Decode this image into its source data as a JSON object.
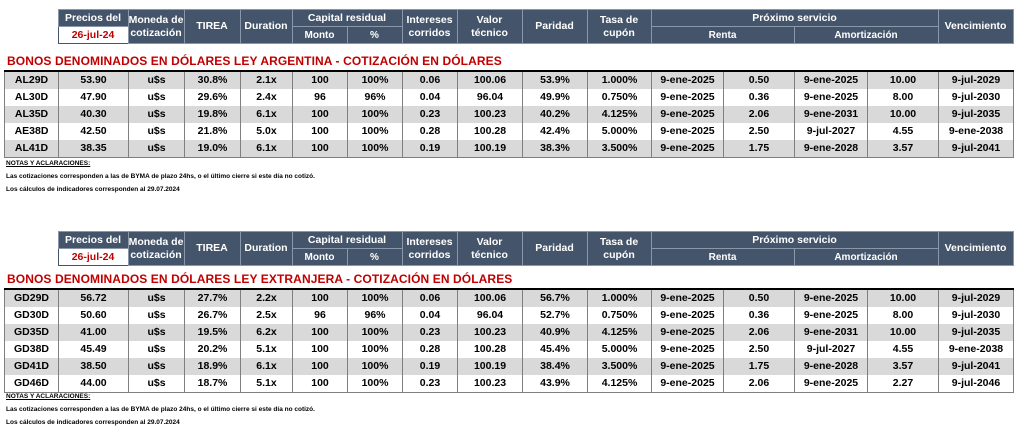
{
  "header": {
    "precios_del": "Precios del",
    "date": "26-jul-24",
    "moneda": "Moneda de cotización",
    "tirea": "TIREA",
    "duration": "Duration",
    "capital_residual": "Capital residual",
    "monto": "Monto",
    "pct": "%",
    "intereses": "Intereses corridos",
    "valor": "Valor técnico",
    "paridad": "Paridad",
    "tasa": "Tasa de cupón",
    "proximo": "Próximo servicio",
    "renta": "Renta",
    "amortizacion": "Amortización",
    "vencimiento": "Vencimiento"
  },
  "section1": {
    "title": "BONOS DENOMINADOS EN DÓLARES LEY ARGENTINA   -   COTIZACIÓN EN DÓLARES",
    "rows": [
      [
        "AL29D",
        "53.90",
        "u$s",
        "30.8%",
        "2.1x",
        "100",
        "100%",
        "0.06",
        "100.06",
        "53.9%",
        "1.000%",
        "9-ene-2025",
        "0.50",
        "9-ene-2025",
        "10.00",
        "9-jul-2029"
      ],
      [
        "AL30D",
        "47.90",
        "u$s",
        "29.6%",
        "2.4x",
        "96",
        "96%",
        "0.04",
        "96.04",
        "49.9%",
        "0.750%",
        "9-ene-2025",
        "0.36",
        "9-ene-2025",
        "8.00",
        "9-jul-2030"
      ],
      [
        "AL35D",
        "40.30",
        "u$s",
        "19.8%",
        "6.1x",
        "100",
        "100%",
        "0.23",
        "100.23",
        "40.2%",
        "4.125%",
        "9-ene-2025",
        "2.06",
        "9-ene-2031",
        "10.00",
        "9-jul-2035"
      ],
      [
        "AE38D",
        "42.50",
        "u$s",
        "21.8%",
        "5.0x",
        "100",
        "100%",
        "0.28",
        "100.28",
        "42.4%",
        "5.000%",
        "9-ene-2025",
        "2.50",
        "9-jul-2027",
        "4.55",
        "9-ene-2038"
      ],
      [
        "AL41D",
        "38.35",
        "u$s",
        "19.0%",
        "6.1x",
        "100",
        "100%",
        "0.19",
        "100.19",
        "38.3%",
        "3.500%",
        "9-ene-2025",
        "1.75",
        "9-ene-2028",
        "3.57",
        "9-jul-2041"
      ]
    ],
    "notes_title": "NOTAS Y ACLARACIONES:",
    "note1": "Las cotizaciones corresponden a las de BYMA de plazo 24hs, o el último cierre si este día no cotizó.",
    "note2": "Los cálculos de indicadores corresponden al 29.07.2024"
  },
  "section2": {
    "title": "BONOS DENOMINADOS EN DÓLARES LEY EXTRANJERA   -   COTIZACIÓN EN DÓLARES",
    "rows": [
      [
        "GD29D",
        "56.72",
        "u$s",
        "27.7%",
        "2.2x",
        "100",
        "100%",
        "0.06",
        "100.06",
        "56.7%",
        "1.000%",
        "9-ene-2025",
        "0.50",
        "9-ene-2025",
        "10.00",
        "9-jul-2029"
      ],
      [
        "GD30D",
        "50.60",
        "u$s",
        "26.7%",
        "2.5x",
        "96",
        "96%",
        "0.04",
        "96.04",
        "52.7%",
        "0.750%",
        "9-ene-2025",
        "0.36",
        "9-ene-2025",
        "8.00",
        "9-jul-2030"
      ],
      [
        "GD35D",
        "41.00",
        "u$s",
        "19.5%",
        "6.2x",
        "100",
        "100%",
        "0.23",
        "100.23",
        "40.9%",
        "4.125%",
        "9-ene-2025",
        "2.06",
        "9-ene-2031",
        "10.00",
        "9-jul-2035"
      ],
      [
        "GD38D",
        "45.49",
        "u$s",
        "20.2%",
        "5.1x",
        "100",
        "100%",
        "0.28",
        "100.28",
        "45.4%",
        "5.000%",
        "9-ene-2025",
        "2.50",
        "9-jul-2027",
        "4.55",
        "9-ene-2038"
      ],
      [
        "GD41D",
        "38.50",
        "u$s",
        "18.9%",
        "6.1x",
        "100",
        "100%",
        "0.19",
        "100.19",
        "38.4%",
        "3.500%",
        "9-ene-2025",
        "1.75",
        "9-ene-2028",
        "3.57",
        "9-jul-2041"
      ],
      [
        "GD46D",
        "44.00",
        "u$s",
        "18.7%",
        "5.1x",
        "100",
        "100%",
        "0.23",
        "100.23",
        "43.9%",
        "4.125%",
        "9-ene-2025",
        "2.06",
        "9-ene-2025",
        "2.27",
        "9-jul-2046"
      ]
    ],
    "notes_title": "NOTAS Y ACLARACIONES:",
    "note1": "Las cotizaciones corresponden a las de BYMA de plazo 24hs, o el último cierre si este día no cotizó.",
    "note2": "Los cálculos de indicadores corresponden al 29.07.2024"
  }
}
